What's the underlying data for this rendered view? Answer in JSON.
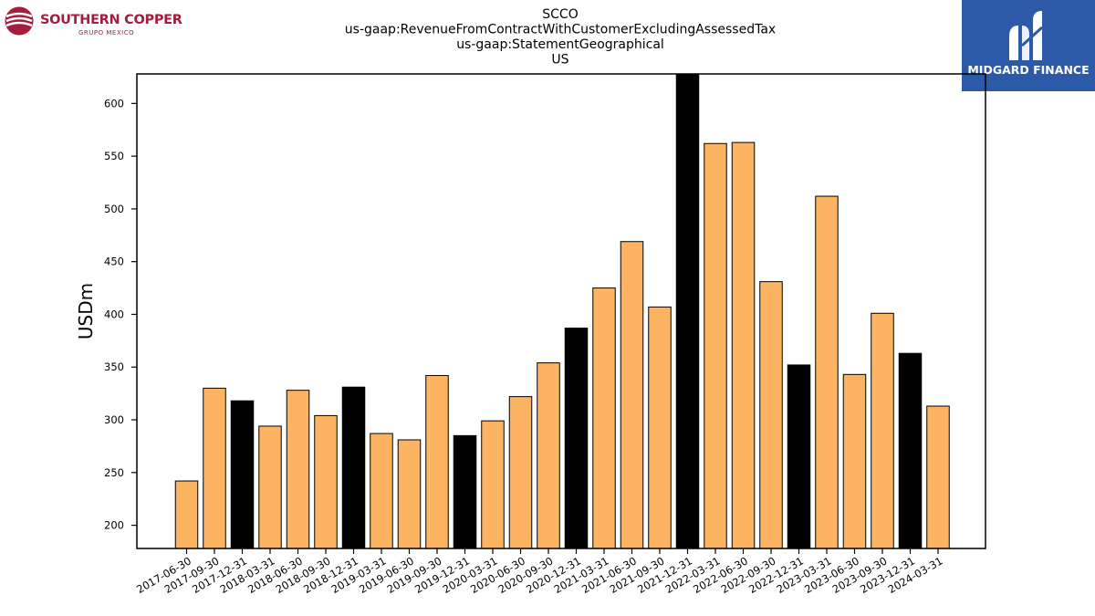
{
  "header": {
    "left_logo_text": "SOUTHERN COPPER",
    "left_logo_subtext": "GRUPO MEXICO",
    "right_logo_text": "MIDGARD FINANCE"
  },
  "colors": {
    "bar_regular": "#fdb462",
    "bar_q4": "#000000",
    "bar_edge": "#000000",
    "left_logo": "#a51d3c",
    "right_logo_bg": "#2d5aa8"
  },
  "chart_data": {
    "type": "bar",
    "title_lines": [
      "SCCO",
      "us-gaap:RevenueFromContractWithCustomerExcludingAssessedTax",
      "us-gaap:StatementGeographical",
      "US"
    ],
    "xlabel": "",
    "ylabel": "USDm",
    "ylim": [
      178,
      628
    ],
    "yticks": [
      200,
      250,
      300,
      350,
      400,
      450,
      500,
      550,
      600
    ],
    "grid": false,
    "legend": "none",
    "categories": [
      "2017-06-30",
      "2017-09-30",
      "2017-12-31",
      "2018-03-31",
      "2018-06-30",
      "2018-09-30",
      "2018-12-31",
      "2019-03-31",
      "2019-06-30",
      "2019-09-30",
      "2019-12-31",
      "2020-03-31",
      "2020-06-30",
      "2020-09-30",
      "2020-12-31",
      "2021-03-31",
      "2021-06-30",
      "2021-09-30",
      "2021-12-31",
      "2022-03-31",
      "2022-06-30",
      "2022-09-30",
      "2022-12-31",
      "2023-03-31",
      "2023-06-30",
      "2023-09-30",
      "2023-12-31",
      "2024-03-31"
    ],
    "values": [
      242,
      330,
      318,
      294,
      328,
      304,
      331,
      287,
      281,
      342,
      285,
      299,
      322,
      354,
      387,
      425,
      469,
      407,
      628,
      562,
      563,
      431,
      352,
      512,
      343,
      401,
      363,
      313
    ],
    "highlight": [
      false,
      false,
      true,
      false,
      false,
      false,
      true,
      false,
      false,
      false,
      true,
      false,
      false,
      false,
      true,
      false,
      false,
      false,
      true,
      false,
      false,
      false,
      true,
      false,
      false,
      false,
      true,
      false
    ]
  }
}
